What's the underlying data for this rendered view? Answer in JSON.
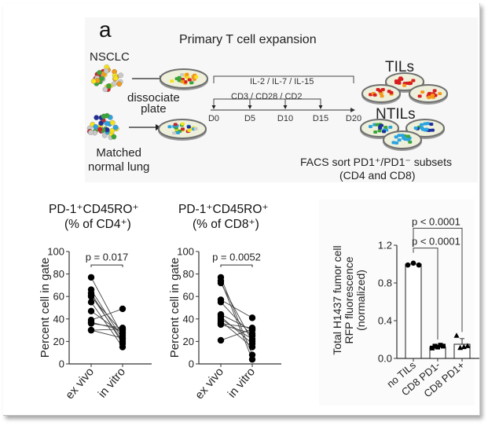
{
  "figure": {
    "panel_letter": "a",
    "diagram": {
      "title": "Primary T cell expansion",
      "source_tumor": "NSCLC",
      "source_normal_line1": "Matched",
      "source_normal_line2": "normal lung",
      "step_line1": "dissociate",
      "step_line2": "plate",
      "cytokines": "IL-2 / IL-7 / IL-15",
      "stimulation": "CD3 / CD28 / CD2",
      "timeline_days": [
        "D0",
        "D5",
        "D10",
        "D15",
        "D20"
      ],
      "output_tumor": "TILs",
      "output_normal": "NTILs",
      "sort_line1": "FACS sort PD1⁺/PD1⁻ subsets",
      "sort_line2": "(CD4 and CD8)",
      "colors": {
        "tumor_cells": [
          "#d81e1e",
          "#f39a1c",
          "#f6e21c",
          "#3aa537",
          "#c9c9c9"
        ],
        "normal_cells": [
          "#2aa3e0",
          "#1f2f9a",
          "#f6e21c",
          "#3aa537",
          "#c9c9c9",
          "#c8252b"
        ],
        "dish_fill": "#eef0dc",
        "dish_rim": "#6f6f6f"
      }
    }
  },
  "chart_data": [
    {
      "type": "scatter",
      "subtype": "paired-dot-plot",
      "title_line1": "PD-1⁺CD45RO⁺",
      "title_line2": "(% of CD4⁺)",
      "ylabel": "Percent cell in gate",
      "xlabel": "",
      "categories": [
        "ex vivo",
        "in vitro"
      ],
      "ylim": [
        0,
        100
      ],
      "yticks": [
        0,
        20,
        40,
        60,
        80,
        100
      ],
      "annotation": "p = 0.017",
      "pairs": [
        [
          77,
          25
        ],
        [
          66,
          22
        ],
        [
          63,
          18
        ],
        [
          61,
          20
        ],
        [
          60,
          28
        ],
        [
          55,
          15
        ],
        [
          47,
          27
        ],
        [
          39,
          49
        ],
        [
          37,
          30
        ],
        [
          36,
          32
        ],
        [
          30,
          23
        ],
        [
          30,
          31
        ]
      ]
    },
    {
      "type": "scatter",
      "subtype": "paired-dot-plot",
      "title_line1": "PD-1⁺CD45RO⁺",
      "title_line2": "(% of CD8⁺)",
      "ylabel": "Percent cell in gate",
      "xlabel": "",
      "categories": [
        "ex vivo",
        "in vitro"
      ],
      "ylim": [
        0,
        100
      ],
      "yticks": [
        0,
        20,
        40,
        60,
        80,
        100
      ],
      "annotation": "p = 0.0052",
      "pairs": [
        [
          77,
          8
        ],
        [
          74,
          4
        ],
        [
          72,
          20
        ],
        [
          57,
          41
        ],
        [
          55,
          25
        ],
        [
          44,
          30
        ],
        [
          42,
          18
        ],
        [
          40,
          22
        ],
        [
          38,
          15
        ],
        [
          35,
          27
        ],
        [
          21,
          31
        ],
        [
          36,
          32
        ]
      ]
    },
    {
      "type": "bar",
      "title": "",
      "ylabel_line1": "Total H1437 fumor cell",
      "ylabel_line2": "RFP  fluorescence",
      "ylabel_line3": "(normalized)",
      "xlabel": "",
      "categories": [
        "no TILs",
        "CD8 PD1-",
        "CD8 PD1+"
      ],
      "values": [
        1.0,
        0.12,
        0.15
      ],
      "errors": [
        0.01,
        0.01,
        0.06
      ],
      "points": [
        [
          0.99,
          1.01,
          0.99
        ],
        [
          0.11,
          0.13,
          0.12,
          0.14,
          0.13
        ],
        [
          0.24,
          0.11,
          0.12,
          0.13
        ]
      ],
      "markers": [
        "circle",
        "square",
        "triangle"
      ],
      "ylim": [
        0,
        1.2
      ],
      "yticks": [
        0.0,
        0.4,
        0.8,
        1.2
      ],
      "ytick_labels": [
        "0.0",
        "0.4",
        "0.8",
        "1.2"
      ],
      "comparisons": [
        {
          "from": "no TILs",
          "to": "CD8 PD1-",
          "label": "p < 0.0001"
        },
        {
          "from": "no TILs",
          "to": "CD8 PD1+",
          "label": "p < 0.0001"
        }
      ]
    }
  ]
}
